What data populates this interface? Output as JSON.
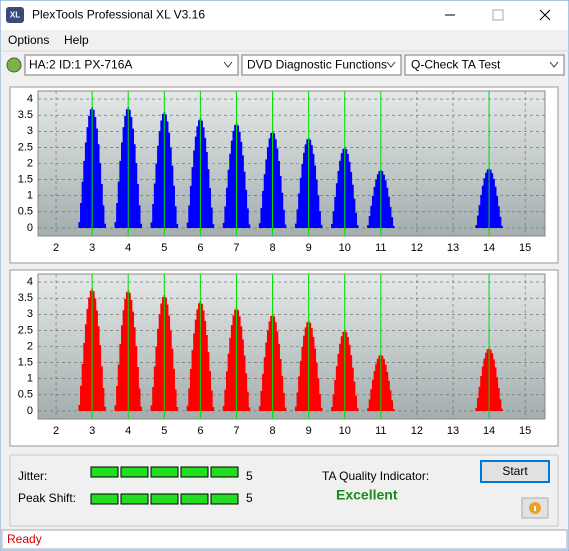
{
  "window": {
    "icon": "XL",
    "title": "PlexTools Professional XL V3.16"
  },
  "menu": [
    "Options",
    "Help"
  ],
  "toolbar": {
    "drive": "HA:2 ID:1  PX-716A",
    "function": "DVD Diagnostic Functions",
    "test": "Q-Check TA Test"
  },
  "chart_data": [
    {
      "type": "bar",
      "color": "#0000ff",
      "x": [
        3,
        4,
        5,
        6,
        7,
        8,
        9,
        10,
        11,
        14
      ],
      "values": [
        3.75,
        3.75,
        3.6,
        3.4,
        3.25,
        3.0,
        2.8,
        2.5,
        1.8,
        1.85
      ],
      "reference_lines": [
        3,
        4,
        5,
        6,
        7,
        8,
        9,
        10,
        11,
        14
      ],
      "reference_color": "#00e000",
      "xlim": [
        1.5,
        15.55
      ],
      "ylim": [
        -0.25,
        4.25
      ],
      "xticks": [
        2,
        3,
        4,
        5,
        6,
        7,
        8,
        9,
        10,
        11,
        12,
        13,
        14,
        15
      ],
      "yticks": [
        0,
        0.5,
        1,
        1.5,
        2,
        2.5,
        3,
        3.5,
        4
      ],
      "grid": true
    },
    {
      "type": "bar",
      "color": "#ff0000",
      "x": [
        3,
        4,
        5,
        6,
        7,
        8,
        9,
        10,
        11,
        14
      ],
      "values": [
        3.8,
        3.75,
        3.6,
        3.4,
        3.2,
        3.0,
        2.8,
        2.5,
        1.75,
        1.95
      ],
      "reference_lines": [
        3,
        4,
        5,
        6,
        7,
        8,
        9,
        10,
        11,
        14
      ],
      "reference_color": "#00e000",
      "xlim": [
        1.5,
        15.55
      ],
      "ylim": [
        -0.25,
        4.25
      ],
      "xticks": [
        2,
        3,
        4,
        5,
        6,
        7,
        8,
        9,
        10,
        11,
        12,
        13,
        14,
        15
      ],
      "yticks": [
        0,
        0.5,
        1,
        1.5,
        2,
        2.5,
        3,
        3.5,
        4
      ],
      "grid": true
    }
  ],
  "results": {
    "jitter_label": "Jitter:",
    "jitter": 5,
    "peak_shift_label": "Peak Shift:",
    "peak_shift": 5,
    "ta_label": "TA Quality Indicator:",
    "ta_value": "Excellent",
    "start": "Start"
  },
  "status": "Ready"
}
